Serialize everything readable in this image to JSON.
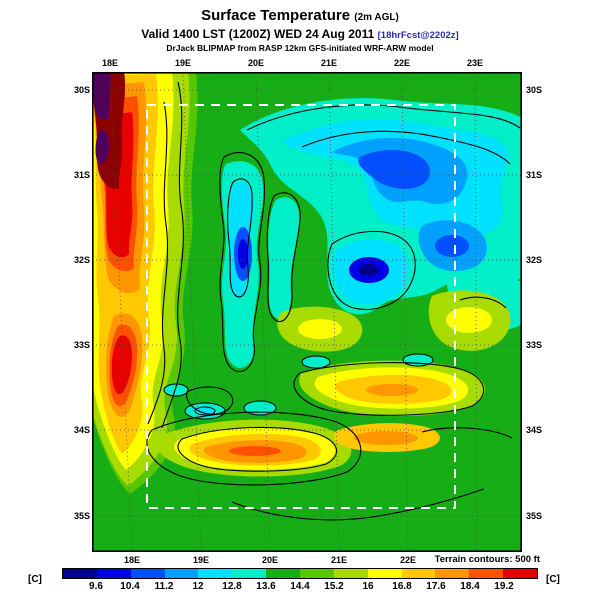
{
  "header": {
    "title": "Surface Temperature",
    "title_suffix": "(2m AGL)",
    "valid_line": "Valid 1400 LST (1200Z) WED 24 Aug 2011",
    "forecast_tag": "[18hrFcst@2202z]",
    "model_line": "DrJack BLIPMAP from RASP 12km GFS-initiated WRF-ARW model"
  },
  "map": {
    "top_ticks": [
      "18E",
      "19E",
      "20E",
      "21E",
      "22E",
      "23E"
    ],
    "bottom_ticks": [
      "18E",
      "19E",
      "20E",
      "21E",
      "22E"
    ],
    "left_ticks": [
      "30S",
      "31S",
      "32S",
      "33S",
      "34S",
      "35S"
    ],
    "right_ticks": [
      "30S",
      "31S",
      "32S",
      "33S",
      "34S",
      "35S"
    ],
    "terrain_note": "Terrain contours: 500 ft"
  },
  "colorbar": {
    "unit_left": "[C]",
    "unit_right": "[C]",
    "ticks": [
      "9.6",
      "10.4",
      "11.2",
      "12",
      "12.8",
      "13.6",
      "14.4",
      "15.2",
      "16",
      "16.8",
      "17.6",
      "18.4",
      "19.2"
    ],
    "colors": [
      "#00008C",
      "#0000E8",
      "#0050FF",
      "#00A0FF",
      "#00E0FF",
      "#00EFC8",
      "#16AD16",
      "#58C700",
      "#A8DC00",
      "#FFFF00",
      "#FFC800",
      "#FF9600",
      "#FF5000",
      "#E80000"
    ],
    "extreme_high": "#8C0000",
    "extreme_max": "#50005A"
  },
  "chart_data": {
    "type": "heatmap",
    "title": "Surface Temperature (2m AGL)",
    "units": "C",
    "valid": "1400 LST (1200Z) WED 24 Aug 2011",
    "forecast": "18hrFcst@2202z",
    "model": "DrJack BLIPMAP from RASP 12km GFS-initiated WRF-ARW model",
    "x_axis": {
      "label": "longitude",
      "ticks": [
        "18E",
        "19E",
        "20E",
        "21E",
        "22E",
        "23E"
      ]
    },
    "y_axis": {
      "label": "latitude",
      "ticks": [
        "30S",
        "31S",
        "32S",
        "33S",
        "34S",
        "35S"
      ]
    },
    "scale": {
      "min": 9.6,
      "max": 19.2,
      "step": 0.8,
      "levels": [
        9.6,
        10.4,
        11.2,
        12,
        12.8,
        13.6,
        14.4,
        15.2,
        16,
        16.8,
        17.6,
        18.4,
        19.2
      ]
    },
    "terrain_contour_interval_ft": 500,
    "features": [
      {
        "region": "west coastal strip near 18E, 30S-33S",
        "temp_c": "18.4-19.2+",
        "color": "red"
      },
      {
        "region": "northwest corner",
        "temp_c": ">19.2",
        "color": "maroon-purple off-scale"
      },
      {
        "region": "northeast interior plateau 20E-23E, 30S-32S",
        "temp_c": "11.2-12.8",
        "color": "cyan-blue"
      },
      {
        "region": "central north-south mountain ridges near 20E, 31S-33S",
        "temp_c": "10.4-12",
        "color": "blue cores"
      },
      {
        "region": "cold core near 21E, 32S",
        "temp_c": "<9.6",
        "color": "navy"
      },
      {
        "region": "interior valleys 19E-22E, 33S-34S",
        "temp_c": "16-18.4",
        "color": "yellow-orange bands"
      },
      {
        "region": "eastern mid-level patch near 22E, 33S",
        "temp_c": "15.2-16.8",
        "color": "yellow"
      },
      {
        "region": "background land and ocean",
        "temp_c": "13.6-15.2",
        "color": "green"
      }
    ]
  }
}
